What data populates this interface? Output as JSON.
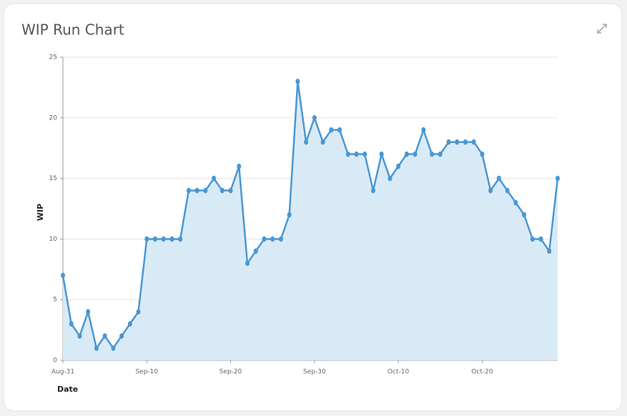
{
  "chart_data": {
    "type": "area",
    "title": "WIP Run Chart",
    "x_label": "Date",
    "y_label": "WIP",
    "x": [
      "Aug-31",
      "Sep-01",
      "Sep-02",
      "Sep-03",
      "Sep-04",
      "Sep-05",
      "Sep-06",
      "Sep-07",
      "Sep-08",
      "Sep-09",
      "Sep-10",
      "Sep-11",
      "Sep-12",
      "Sep-13",
      "Sep-14",
      "Sep-15",
      "Sep-16",
      "Sep-17",
      "Sep-18",
      "Sep-19",
      "Sep-20",
      "Sep-21",
      "Sep-22",
      "Sep-23",
      "Sep-24",
      "Sep-25",
      "Sep-26",
      "Sep-27",
      "Sep-28",
      "Sep-29",
      "Sep-30",
      "Oct-01",
      "Oct-02",
      "Oct-03",
      "Oct-04",
      "Oct-05",
      "Oct-06",
      "Oct-07",
      "Oct-08",
      "Oct-09",
      "Oct-10",
      "Oct-11",
      "Oct-12",
      "Oct-13",
      "Oct-14",
      "Oct-15",
      "Oct-16",
      "Oct-17",
      "Oct-18",
      "Oct-19",
      "Oct-20",
      "Oct-21",
      "Oct-22",
      "Oct-23",
      "Oct-24",
      "Oct-25",
      "Oct-26",
      "Oct-27",
      "Oct-28",
      "Oct-29"
    ],
    "series": [
      {
        "name": "WIP",
        "color": "#4a97d3",
        "values": [
          7,
          3,
          2,
          4,
          1,
          2,
          1,
          2,
          3,
          4,
          10,
          10,
          10,
          10,
          10,
          14,
          14,
          14,
          15,
          14,
          14,
          16,
          8,
          9,
          10,
          10,
          10,
          12,
          23,
          18,
          20,
          18,
          19,
          19,
          17,
          17,
          17,
          14,
          17,
          15,
          16,
          17,
          17,
          19,
          17,
          17,
          18,
          18,
          18,
          18,
          17,
          14,
          15,
          14,
          13,
          12,
          10,
          10,
          9,
          15
        ]
      }
    ],
    "xlim": [
      "Aug-31",
      "Oct-29"
    ],
    "xticks": [
      "Aug-31",
      "Sep-10",
      "Sep-20",
      "Sep-30",
      "Oct-10",
      "Oct-20"
    ],
    "ylim": [
      0,
      25
    ],
    "yticks": [
      0,
      5,
      10,
      15,
      20,
      25
    ],
    "grid": true
  }
}
